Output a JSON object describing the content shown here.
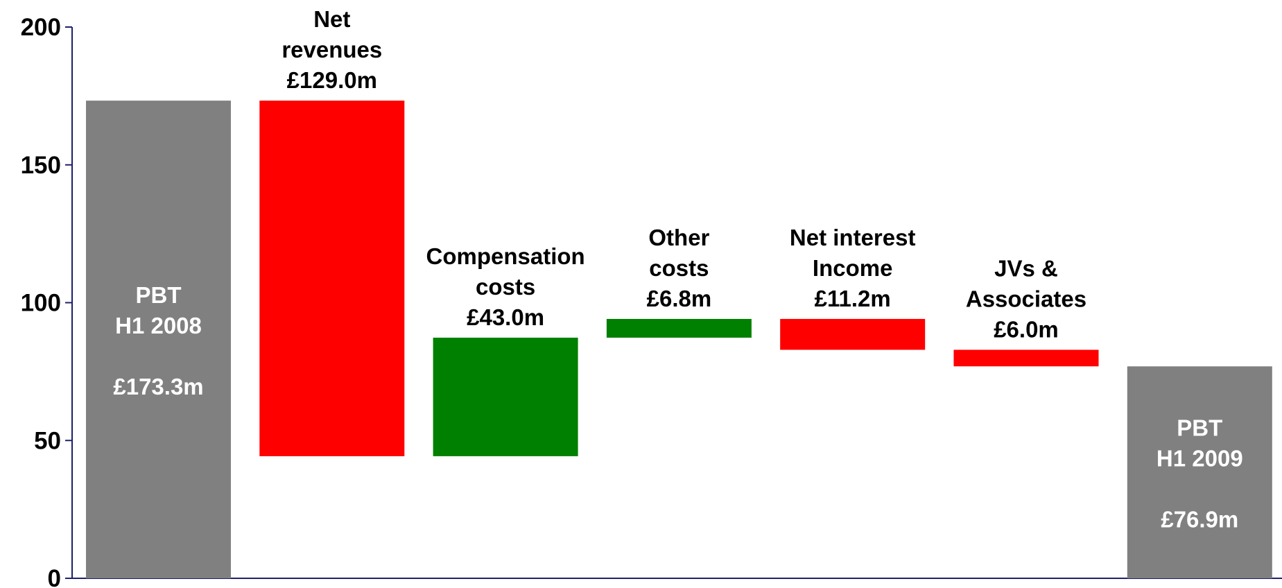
{
  "chart_data": {
    "type": "waterfall",
    "categories": [
      "PBT\nH1 2008",
      "Net\nrevenues",
      "Compensation\ncosts",
      "Other\ncosts",
      "Net interest\nIncome",
      "JVs &\nAssociates",
      "PBT\nH1 2009"
    ],
    "values": [
      173.3,
      -129.0,
      43.0,
      6.8,
      -11.2,
      -6.0,
      76.9
    ],
    "value_labels": [
      "£173.3m",
      "£129.0m",
      "£43.0m",
      "£6.8m",
      "£11.2m",
      "£6.0m",
      "£76.9m"
    ],
    "measure": [
      "total",
      "relative",
      "relative",
      "relative",
      "relative",
      "relative",
      "total"
    ],
    "colors": [
      "#808080",
      "#ff0000",
      "#008000",
      "#008000",
      "#ff0000",
      "#ff0000",
      "#808080"
    ],
    "ylim": [
      0,
      200
    ],
    "yticks": [
      0,
      50,
      100,
      150,
      200
    ]
  }
}
